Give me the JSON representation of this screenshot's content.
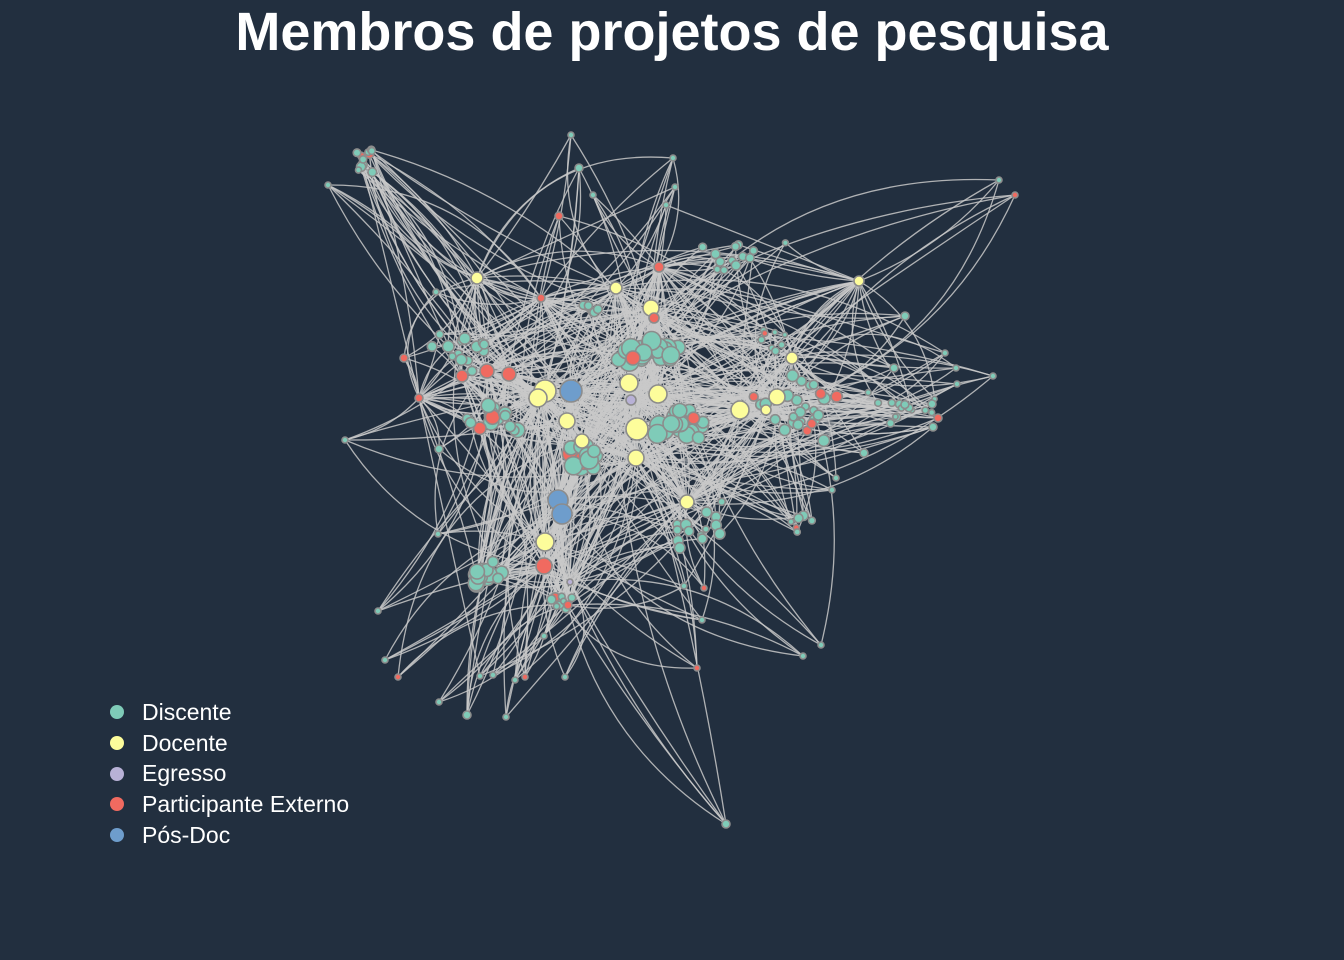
{
  "title": "Membros de projetos de pesquisa",
  "colors": {
    "background": "#222f3f",
    "edge": "#c9c9c9",
    "node_border": "#8c8c8c"
  },
  "legend": [
    {
      "label": "Discente",
      "color": "#7fcbb8"
    },
    {
      "label": "Docente",
      "color": "#fdfd9b"
    },
    {
      "label": "Egresso",
      "color": "#b8b1d6"
    },
    {
      "label": "Participante Externo",
      "color": "#f06a60"
    },
    {
      "label": "Pós-Doc",
      "color": "#6e9dcc"
    }
  ]
}
